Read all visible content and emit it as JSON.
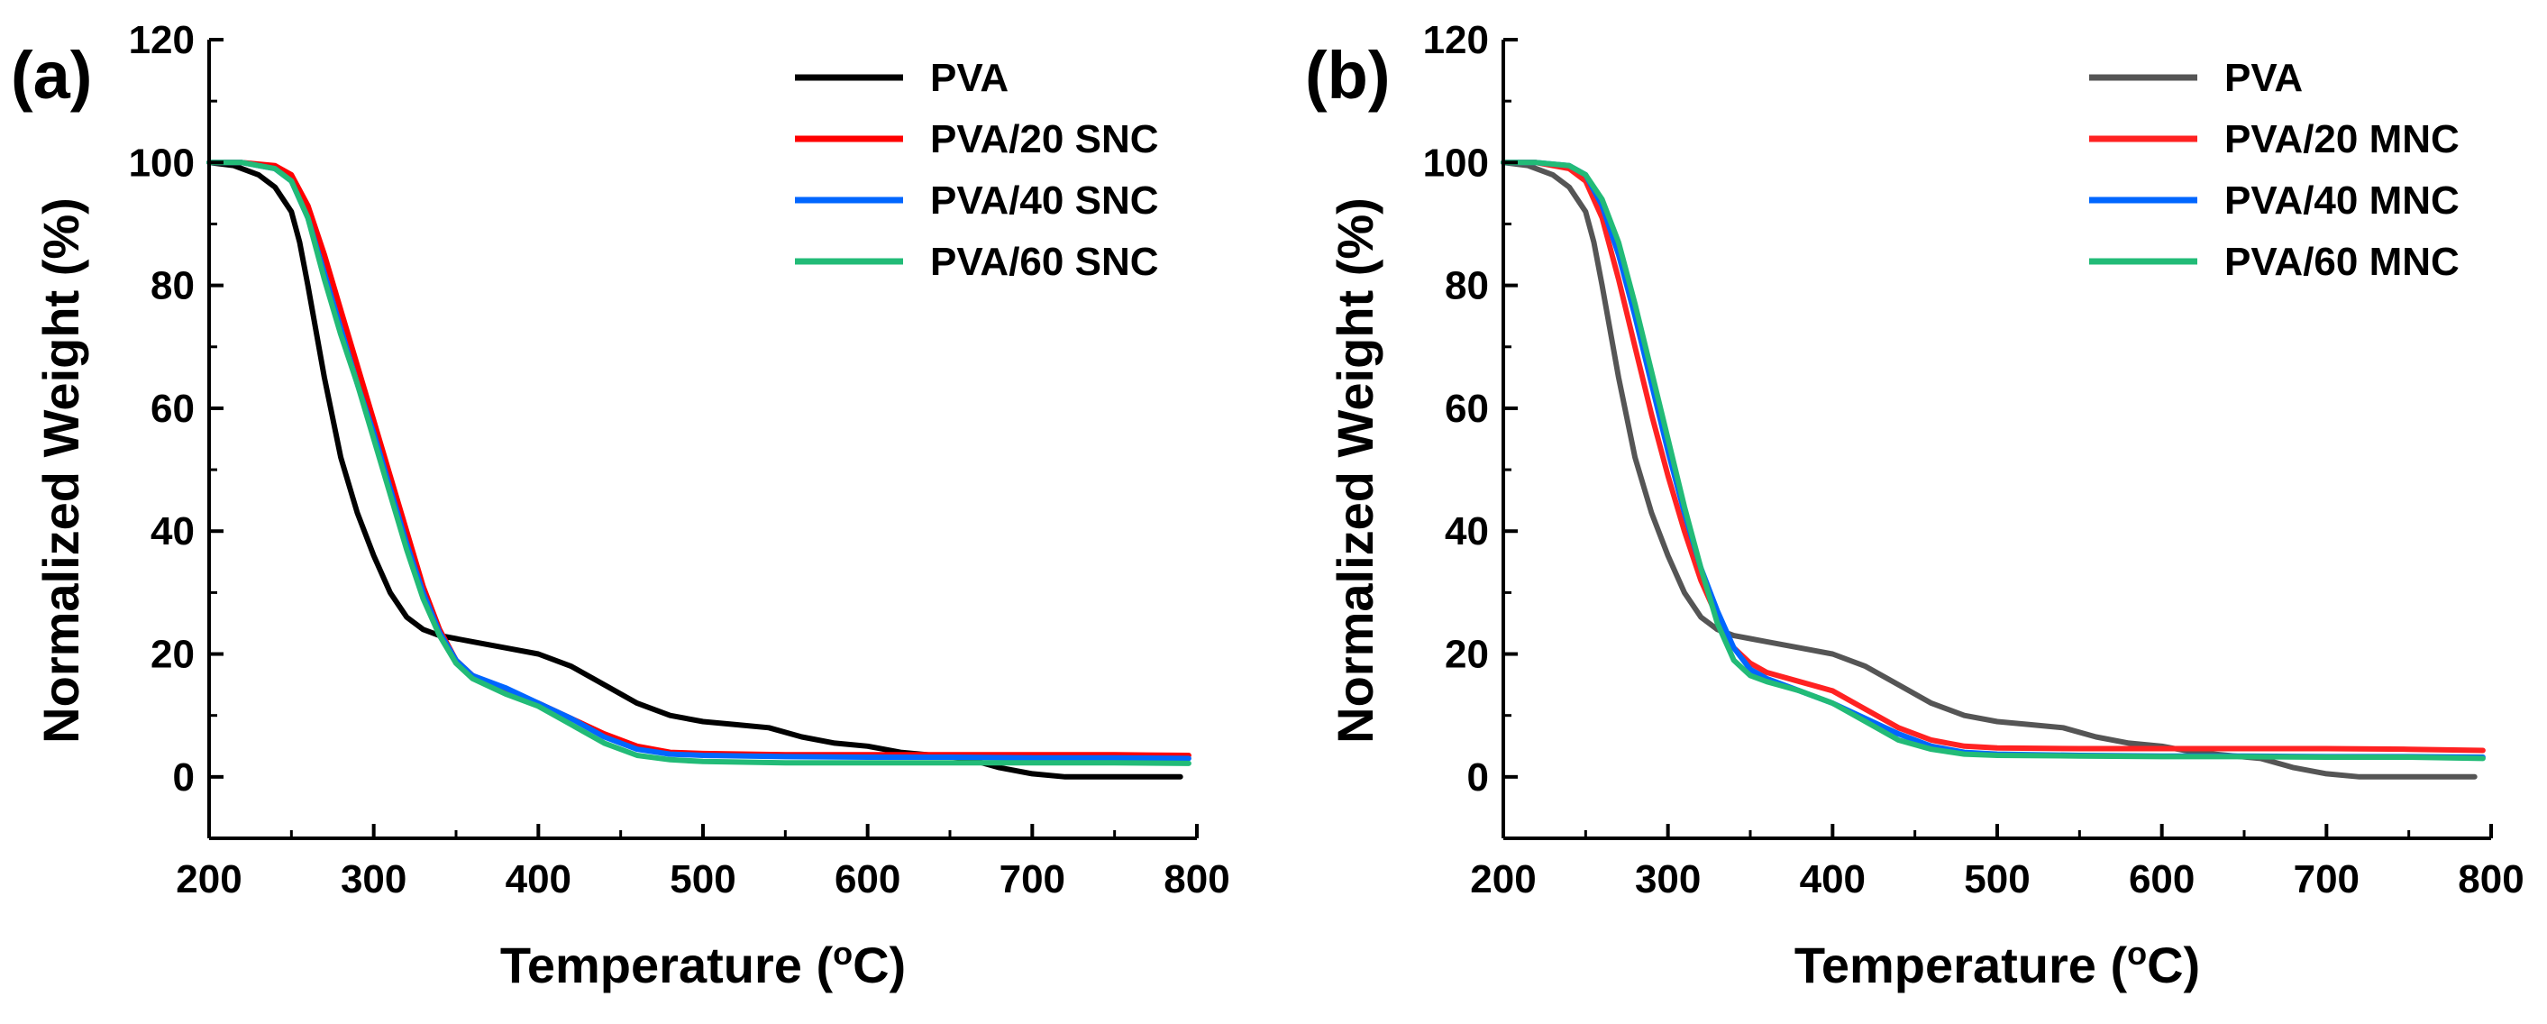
{
  "chart_data": [
    {
      "type": "line",
      "panel_label": "(a)",
      "xlabel": "Temperature (",
      "xlabel_sup": "o",
      "xlabel_end": "C)",
      "ylabel": "Normalized Weight (%)",
      "xlim": [
        200,
        800
      ],
      "ylim": [
        -10,
        120
      ],
      "xticks": [
        200,
        300,
        400,
        500,
        600,
        700,
        800
      ],
      "yticks": [
        0,
        20,
        40,
        60,
        80,
        100,
        120
      ],
      "legend_position": "top-right",
      "series": [
        {
          "name": "PVA",
          "color": "#000000",
          "x": [
            200,
            215,
            230,
            240,
            250,
            255,
            260,
            270,
            280,
            290,
            300,
            310,
            320,
            330,
            340,
            350,
            360,
            380,
            400,
            420,
            440,
            460,
            480,
            500,
            520,
            540,
            560,
            580,
            600,
            620,
            640,
            660,
            680,
            700,
            720,
            740,
            760,
            790
          ],
          "y": [
            100,
            99.5,
            98,
            96,
            92,
            87,
            80,
            65,
            52,
            43,
            36,
            30,
            26,
            24,
            23,
            22.5,
            22,
            21,
            20,
            18,
            15,
            12,
            10,
            9,
            8.5,
            8,
            6.5,
            5.5,
            5,
            4,
            3.5,
            3,
            1.5,
            0.5,
            0,
            0,
            0,
            0
          ]
        },
        {
          "name": "PVA/20 SNC",
          "color": "#ff0000",
          "x": [
            200,
            220,
            240,
            250,
            260,
            270,
            280,
            290,
            300,
            310,
            320,
            330,
            340,
            350,
            360,
            380,
            400,
            420,
            440,
            460,
            480,
            500,
            550,
            600,
            650,
            700,
            750,
            795
          ],
          "y": [
            100,
            100,
            99.5,
            98,
            93,
            85,
            76,
            67,
            58,
            49,
            40,
            31,
            24,
            19,
            16.5,
            14,
            12,
            9.5,
            7,
            5,
            4,
            3.8,
            3.6,
            3.6,
            3.6,
            3.6,
            3.6,
            3.5
          ]
        },
        {
          "name": "PVA/40 SNC",
          "color": "#0066ff",
          "x": [
            200,
            220,
            240,
            250,
            260,
            270,
            280,
            290,
            300,
            310,
            320,
            330,
            340,
            350,
            360,
            380,
            400,
            420,
            440,
            460,
            480,
            500,
            550,
            600,
            650,
            700,
            750,
            795
          ],
          "y": [
            100,
            100,
            99,
            97,
            91,
            82,
            73,
            64,
            56,
            47,
            38,
            30,
            23.5,
            19,
            16.5,
            14.5,
            12,
            9.5,
            6.5,
            4.5,
            3.7,
            3.5,
            3.3,
            3.2,
            3.2,
            3.1,
            3.1,
            3
          ]
        },
        {
          "name": "PVA/60 SNC",
          "color": "#22bb77",
          "x": [
            200,
            220,
            240,
            250,
            260,
            270,
            280,
            290,
            300,
            310,
            320,
            330,
            340,
            350,
            360,
            380,
            400,
            420,
            440,
            460,
            480,
            500,
            550,
            600,
            650,
            700,
            750,
            795
          ],
          "y": [
            100,
            100,
            99,
            97,
            91,
            81,
            72,
            64,
            55,
            46,
            37,
            29,
            23,
            18.5,
            16,
            13.5,
            11.5,
            8.5,
            5.5,
            3.5,
            2.8,
            2.5,
            2.3,
            2.3,
            2.3,
            2.3,
            2.3,
            2.2
          ]
        }
      ]
    },
    {
      "type": "line",
      "panel_label": "(b)",
      "xlabel": "Temperature (",
      "xlabel_sup": "o",
      "xlabel_end": "C)",
      "ylabel": "Normalized Weight (%)",
      "xlim": [
        200,
        800
      ],
      "ylim": [
        -10,
        120
      ],
      "xticks": [
        200,
        300,
        400,
        500,
        600,
        700,
        800
      ],
      "yticks": [
        0,
        20,
        40,
        60,
        80,
        100,
        120
      ],
      "legend_position": "top-right",
      "series": [
        {
          "name": "PVA",
          "color": "#555555",
          "x": [
            200,
            215,
            230,
            240,
            250,
            255,
            260,
            270,
            280,
            290,
            300,
            310,
            320,
            330,
            340,
            350,
            360,
            380,
            400,
            420,
            440,
            460,
            480,
            500,
            520,
            540,
            560,
            580,
            600,
            620,
            640,
            660,
            680,
            700,
            720,
            740,
            760,
            790
          ],
          "y": [
            100,
            99.5,
            98,
            96,
            92,
            87,
            80,
            65,
            52,
            43,
            36,
            30,
            26,
            24,
            23,
            22.5,
            22,
            21,
            20,
            18,
            15,
            12,
            10,
            9,
            8.5,
            8,
            6.5,
            5.5,
            5,
            4,
            3.5,
            3,
            1.5,
            0.5,
            0,
            0,
            0,
            0
          ]
        },
        {
          "name": "PVA/20 MNC",
          "color": "#ff2222",
          "x": [
            200,
            220,
            240,
            250,
            260,
            270,
            280,
            290,
            300,
            310,
            320,
            330,
            340,
            350,
            360,
            380,
            400,
            420,
            440,
            460,
            480,
            500,
            550,
            600,
            650,
            700,
            750,
            795
          ],
          "y": [
            100,
            100,
            99,
            97,
            91,
            81,
            70,
            59,
            49,
            40,
            32,
            26,
            21,
            18.5,
            17,
            15.5,
            14,
            11,
            8,
            6,
            5,
            4.7,
            4.6,
            4.6,
            4.6,
            4.6,
            4.5,
            4.3
          ]
        },
        {
          "name": "PVA/40 MNC",
          "color": "#0066ff",
          "x": [
            200,
            220,
            240,
            250,
            260,
            270,
            280,
            290,
            300,
            310,
            320,
            330,
            340,
            350,
            360,
            380,
            400,
            420,
            440,
            460,
            480,
            500,
            550,
            600,
            650,
            700,
            750,
            795
          ],
          "y": [
            100,
            100,
            99.5,
            98,
            93,
            85,
            75,
            64,
            53,
            43,
            34,
            27,
            21,
            17.5,
            16,
            14,
            12,
            9.5,
            7,
            5,
            4,
            3.7,
            3.5,
            3.4,
            3.4,
            3.3,
            3.3,
            3.2
          ]
        },
        {
          "name": "PVA/60 MNC",
          "color": "#22bb77",
          "x": [
            200,
            220,
            240,
            250,
            260,
            270,
            280,
            290,
            300,
            310,
            320,
            330,
            340,
            350,
            360,
            380,
            400,
            420,
            440,
            460,
            480,
            500,
            550,
            600,
            650,
            700,
            750,
            795
          ],
          "y": [
            100,
            100,
            99.5,
            98,
            94,
            87,
            77,
            66,
            55,
            44,
            34,
            25,
            19,
            16.5,
            15.5,
            14,
            12,
            9,
            6,
            4.5,
            3.7,
            3.5,
            3.4,
            3.3,
            3.3,
            3.2,
            3.2,
            3
          ]
        }
      ]
    }
  ]
}
